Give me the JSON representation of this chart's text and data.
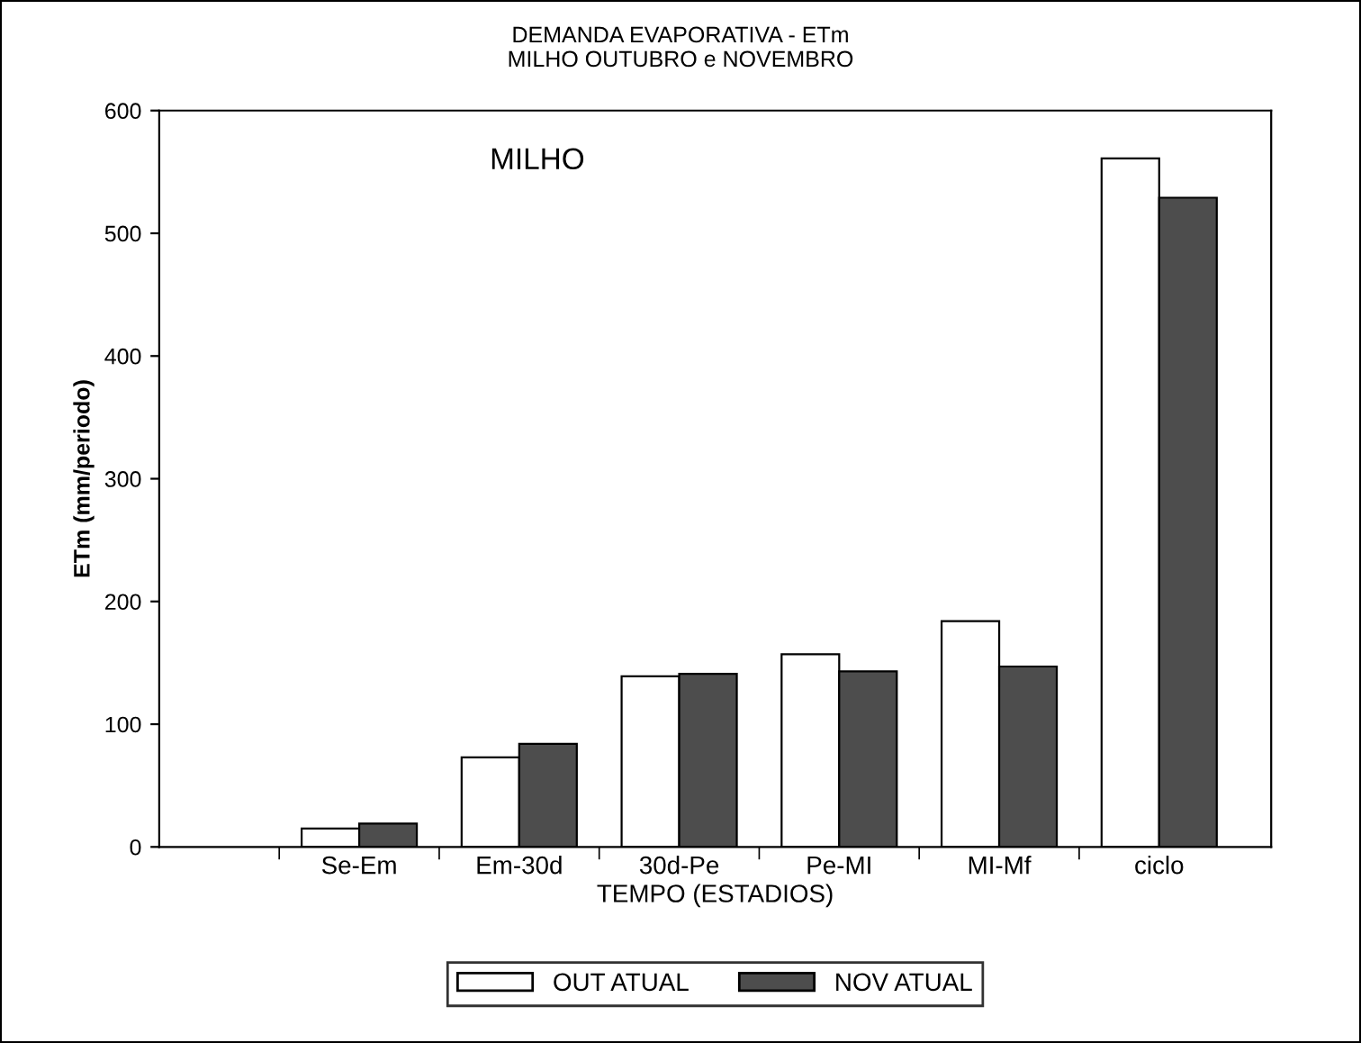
{
  "chart_data": {
    "type": "bar",
    "title": "DEMANDA EVAPORATIVA - ETm\nMILHO OUTUBRO e NOVEMBRO",
    "xlabel": "TEMPO (ESTADIOS)",
    "ylabel": "ETm (mm/periodo)",
    "annotations": [
      "MILHO"
    ],
    "categories": [
      "Se-Em",
      "Em-30d",
      "30d-Pe",
      "Pe-MI",
      "MI-Mf",
      "ciclo"
    ],
    "series": [
      {
        "name": "OUT ATUAL",
        "color": "#ffffff",
        "values": [
          15,
          73,
          139,
          157,
          184,
          561
        ]
      },
      {
        "name": "NOV ATUAL",
        "color": "#4d4d4d",
        "values": [
          19,
          84,
          141,
          143,
          147,
          529
        ]
      }
    ],
    "ylim": [
      0,
      600
    ],
    "yticks": [
      0,
      100,
      200,
      300,
      400,
      500,
      600
    ],
    "grid": false,
    "legend": "bottom"
  }
}
